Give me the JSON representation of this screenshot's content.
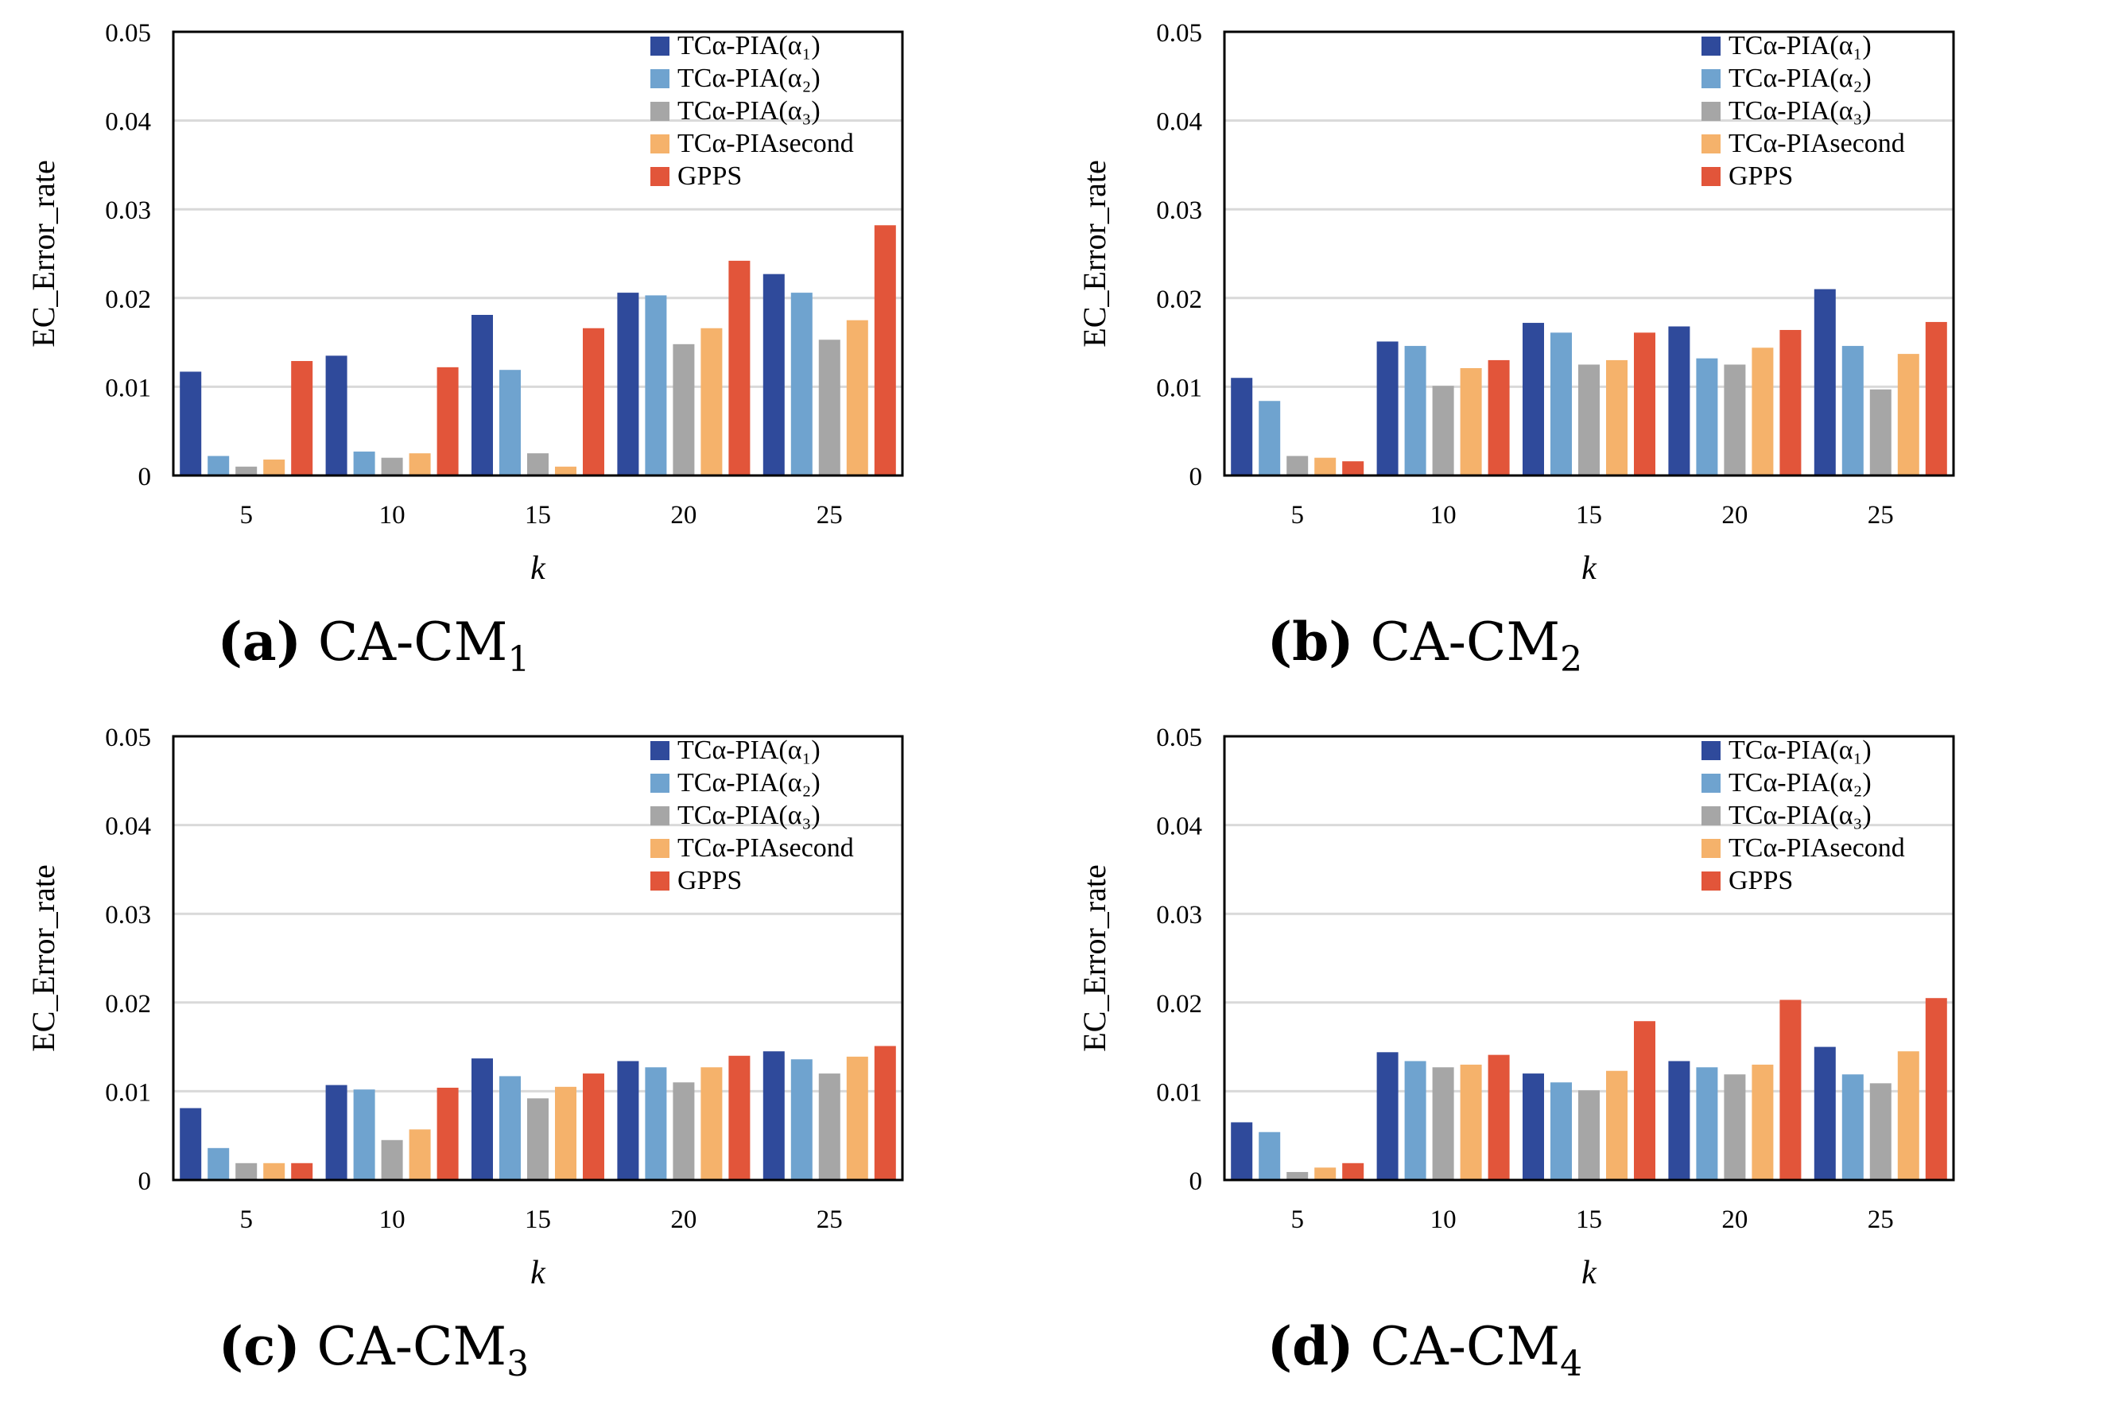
{
  "figure": {
    "series_colors": [
      "#2f4a9b",
      "#6fa3cf",
      "#a6a6a6",
      "#f5b26b",
      "#e2553a"
    ],
    "gridline_color": "#d9d9d9"
  },
  "captions": [
    {
      "letter": "(a)",
      "text": "CA-CM",
      "sub": "1"
    },
    {
      "letter": "(b)",
      "text": "CA-CM",
      "sub": "2"
    },
    {
      "letter": "(c)",
      "text": "CA-CM",
      "sub": "3"
    },
    {
      "letter": "(d)",
      "text": "CA-CM",
      "sub": "4"
    }
  ],
  "chart_data": [
    {
      "type": "bar",
      "title": "(a) CA-CM1",
      "xlabel": "k",
      "ylabel": "EC_Error_rate",
      "ylim": [
        0,
        0.05
      ],
      "yticks": [
        "0",
        "0.01",
        "0.02",
        "0.03",
        "0.04",
        "0.05"
      ],
      "grid": true,
      "legend_position": "top-right",
      "categories": [
        "5",
        "10",
        "15",
        "20",
        "25"
      ],
      "series": [
        {
          "name": "TCα-PIA(α₁)",
          "values": [
            0.0117,
            0.0135,
            0.0181,
            0.0206,
            0.0227
          ]
        },
        {
          "name": "TCα-PIA(α₂)",
          "values": [
            0.0022,
            0.0027,
            0.0119,
            0.0203,
            0.0206
          ]
        },
        {
          "name": "TCα-PIA(α₃)",
          "values": [
            0.001,
            0.002,
            0.0025,
            0.0148,
            0.0153
          ]
        },
        {
          "name": "TCα-PIAsecond",
          "values": [
            0.0018,
            0.0025,
            0.001,
            0.0166,
            0.0175
          ]
        },
        {
          "name": "GPPS",
          "values": [
            0.0129,
            0.0122,
            0.0166,
            0.0242,
            0.0282
          ]
        }
      ]
    },
    {
      "type": "bar",
      "title": "(b) CA-CM2",
      "xlabel": "k",
      "ylabel": "EC_Error_rate",
      "ylim": [
        0,
        0.05
      ],
      "yticks": [
        "0",
        "0.01",
        "0.02",
        "0.03",
        "0.04",
        "0.05"
      ],
      "grid": true,
      "legend_position": "top-right",
      "categories": [
        "5",
        "10",
        "15",
        "20",
        "25"
      ],
      "series": [
        {
          "name": "TCα-PIA(α₁)",
          "values": [
            0.011,
            0.0151,
            0.0172,
            0.0168,
            0.021
          ]
        },
        {
          "name": "TCα-PIA(α₂)",
          "values": [
            0.0084,
            0.0146,
            0.0161,
            0.0132,
            0.0146
          ]
        },
        {
          "name": "TCα-PIA(α₃)",
          "values": [
            0.0022,
            0.0101,
            0.0125,
            0.0125,
            0.0097
          ]
        },
        {
          "name": "TCα-PIAsecond",
          "values": [
            0.002,
            0.0121,
            0.013,
            0.0144,
            0.0137
          ]
        },
        {
          "name": "GPPS",
          "values": [
            0.0016,
            0.013,
            0.0161,
            0.0164,
            0.0173
          ]
        }
      ]
    },
    {
      "type": "bar",
      "title": "(c) CA-CM3",
      "xlabel": "k",
      "ylabel": "EC_Error_rate",
      "ylim": [
        0,
        0.05
      ],
      "yticks": [
        "0",
        "0.01",
        "0.02",
        "0.03",
        "0.04",
        "0.05"
      ],
      "grid": true,
      "legend_position": "top-right",
      "categories": [
        "5",
        "10",
        "15",
        "20",
        "25"
      ],
      "series": [
        {
          "name": "TCα-PIA(α₁)",
          "values": [
            0.0081,
            0.0107,
            0.0137,
            0.0134,
            0.0145
          ]
        },
        {
          "name": "TCα-PIA(α₂)",
          "values": [
            0.0036,
            0.0102,
            0.0117,
            0.0127,
            0.0136
          ]
        },
        {
          "name": "TCα-PIA(α₃)",
          "values": [
            0.0019,
            0.0045,
            0.0092,
            0.011,
            0.012
          ]
        },
        {
          "name": "TCα-PIAsecond",
          "values": [
            0.0019,
            0.0057,
            0.0105,
            0.0127,
            0.0139
          ]
        },
        {
          "name": "GPPS",
          "values": [
            0.0019,
            0.0104,
            0.012,
            0.014,
            0.0151
          ]
        }
      ]
    },
    {
      "type": "bar",
      "title": "(d) CA-CM4",
      "xlabel": "k",
      "ylabel": "EC_Error_rate",
      "ylim": [
        0,
        0.05
      ],
      "yticks": [
        "0",
        "0.01",
        "0.02",
        "0.03",
        "0.04",
        "0.05"
      ],
      "grid": true,
      "legend_position": "top-right",
      "categories": [
        "5",
        "10",
        "15",
        "20",
        "25"
      ],
      "series": [
        {
          "name": "TCα-PIA(α₁)",
          "values": [
            0.0065,
            0.0144,
            0.012,
            0.0134,
            0.015
          ]
        },
        {
          "name": "TCα-PIA(α₂)",
          "values": [
            0.0054,
            0.0134,
            0.011,
            0.0127,
            0.0119
          ]
        },
        {
          "name": "TCα-PIA(α₃)",
          "values": [
            0.0009,
            0.0127,
            0.0101,
            0.0119,
            0.0109
          ]
        },
        {
          "name": "TCα-PIAsecond",
          "values": [
            0.0014,
            0.013,
            0.0123,
            0.013,
            0.0145
          ]
        },
        {
          "name": "GPPS",
          "values": [
            0.0019,
            0.0141,
            0.0179,
            0.0203,
            0.0205
          ]
        }
      ]
    }
  ]
}
